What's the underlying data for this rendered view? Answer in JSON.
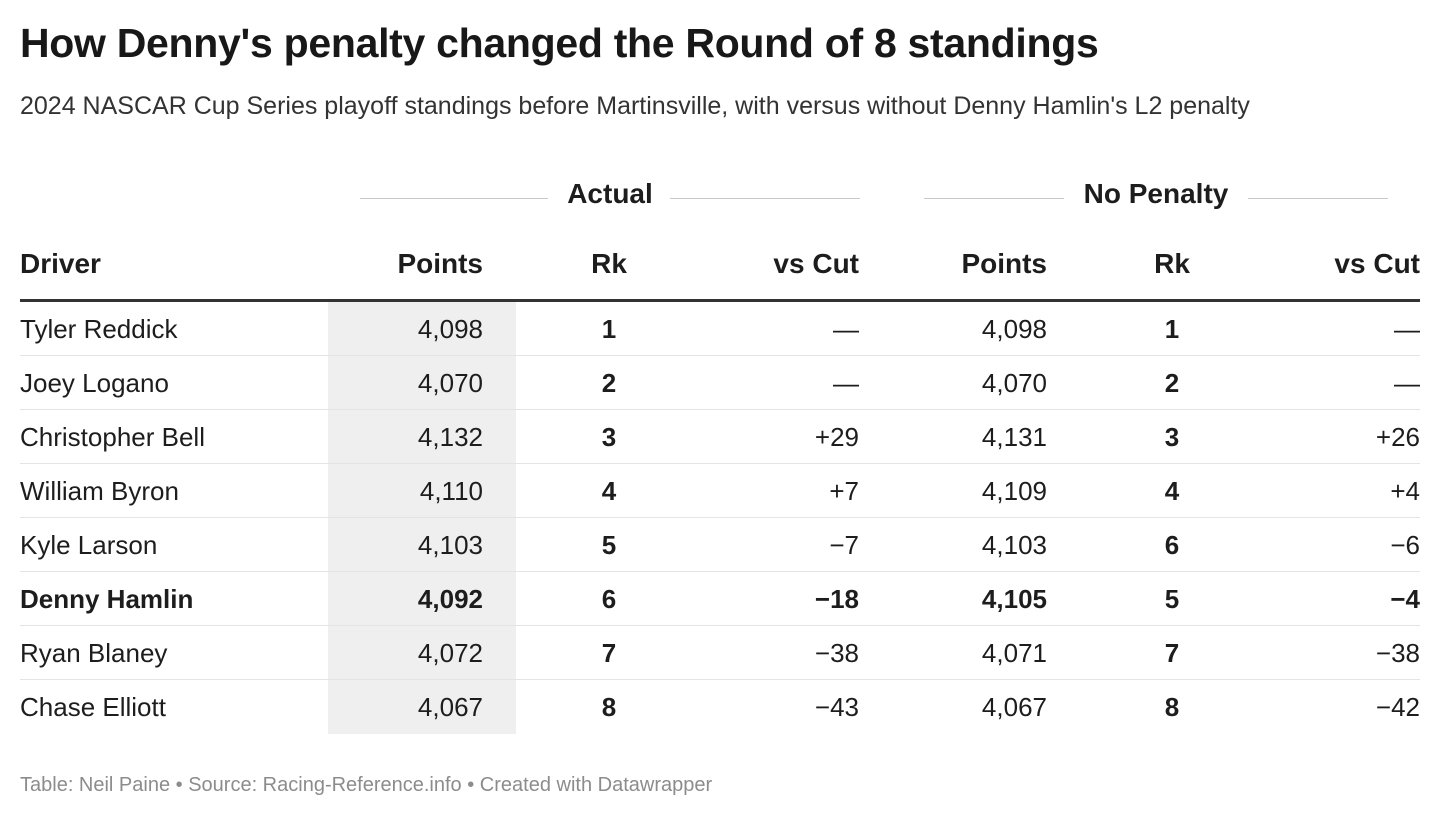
{
  "title": "How Denny's penalty changed the Round of 8 standings",
  "subtitle": "2024 NASCAR Cup Series playoff standings before Martinsville, with versus without Denny Hamlin's L2 penalty",
  "groups": {
    "actual": "Actual",
    "no_penalty": "No Penalty"
  },
  "columns": {
    "driver": "Driver",
    "actual_points": "Points",
    "actual_rk": "Rk",
    "actual_vs_cut": "vs Cut",
    "np_points": "Points",
    "np_rk": "Rk",
    "np_vs_cut": "vs Cut"
  },
  "rows": [
    {
      "driver": "Tyler Reddick",
      "actual_points": "4,098",
      "actual_rk": "1",
      "actual_vs_cut": "—",
      "np_points": "4,098",
      "np_rk": "1",
      "np_vs_cut": "—",
      "highlight": false
    },
    {
      "driver": "Joey Logano",
      "actual_points": "4,070",
      "actual_rk": "2",
      "actual_vs_cut": "—",
      "np_points": "4,070",
      "np_rk": "2",
      "np_vs_cut": "—",
      "highlight": false
    },
    {
      "driver": "Christopher Bell",
      "actual_points": "4,132",
      "actual_rk": "3",
      "actual_vs_cut": "+29",
      "np_points": "4,131",
      "np_rk": "3",
      "np_vs_cut": "+26",
      "highlight": false
    },
    {
      "driver": "William Byron",
      "actual_points": "4,110",
      "actual_rk": "4",
      "actual_vs_cut": "+7",
      "np_points": "4,109",
      "np_rk": "4",
      "np_vs_cut": "+4",
      "highlight": false
    },
    {
      "driver": "Kyle Larson",
      "actual_points": "4,103",
      "actual_rk": "5",
      "actual_vs_cut": "−7",
      "np_points": "4,103",
      "np_rk": "6",
      "np_vs_cut": "−6",
      "highlight": false
    },
    {
      "driver": "Denny Hamlin",
      "actual_points": "4,092",
      "actual_rk": "6",
      "actual_vs_cut": "−18",
      "np_points": "4,105",
      "np_rk": "5",
      "np_vs_cut": "−4",
      "highlight": true
    },
    {
      "driver": "Ryan Blaney",
      "actual_points": "4,072",
      "actual_rk": "7",
      "actual_vs_cut": "−38",
      "np_points": "4,071",
      "np_rk": "7",
      "np_vs_cut": "−38",
      "highlight": false
    },
    {
      "driver": "Chase Elliott",
      "actual_points": "4,067",
      "actual_rk": "8",
      "actual_vs_cut": "−43",
      "np_points": "4,067",
      "np_rk": "8",
      "np_vs_cut": "−42",
      "highlight": false
    }
  ],
  "footer": "Table: Neil Paine • Source: Racing-Reference.info • Created with Datawrapper",
  "colors": {
    "text": "#1d1d1d",
    "shade": "#efefef",
    "rule": "#333333",
    "footer": "#8c8c8c"
  }
}
